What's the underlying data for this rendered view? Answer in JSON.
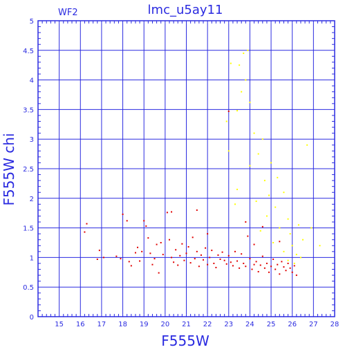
{
  "chart_data": {
    "type": "scatter",
    "title": "lmc_u5ay11",
    "chip_label": "WF2",
    "xlabel": "F555W",
    "ylabel": "F555W chi",
    "xlim": [
      14,
      28
    ],
    "ylim": [
      0,
      5
    ],
    "x_ticks": [
      15,
      16,
      17,
      18,
      19,
      20,
      21,
      22,
      23,
      24,
      25,
      26,
      27,
      28
    ],
    "y_ticks": [
      0,
      0.5,
      1,
      1.5,
      2,
      2.5,
      3,
      3.5,
      4,
      4.5,
      5
    ],
    "x_tick_labels": [
      "15",
      "16",
      "17",
      "18",
      "19",
      "20",
      "21",
      "22",
      "23",
      "24",
      "25",
      "26",
      "27",
      "28"
    ],
    "y_tick_labels": [
      "0",
      "0.5",
      "1",
      "1.5",
      "2",
      "2.5",
      "3",
      "3.5",
      "4",
      "4.5",
      "5"
    ],
    "grid": true,
    "colors": {
      "axis": "#2a2ae0",
      "grid": "#2a2ae0",
      "red": "#e00000",
      "yellow": "#ffff00"
    },
    "series": [
      {
        "color": "#e00000",
        "points": [
          [
            16.3,
            1.57
          ],
          [
            16.2,
            1.43
          ],
          [
            16.9,
            1.12
          ],
          [
            16.8,
            0.97
          ],
          [
            17.1,
            1.0
          ],
          [
            17.7,
            1.02
          ],
          [
            17.9,
            0.98
          ],
          [
            18.2,
            1.62
          ],
          [
            18.0,
            1.73
          ],
          [
            18.3,
            0.93
          ],
          [
            18.4,
            0.86
          ],
          [
            18.6,
            1.08
          ],
          [
            18.7,
            1.17
          ],
          [
            18.8,
            0.94
          ],
          [
            19.0,
            1.62
          ],
          [
            19.1,
            1.53
          ],
          [
            19.2,
            1.33
          ],
          [
            19.3,
            1.07
          ],
          [
            19.4,
            0.88
          ],
          [
            19.5,
            0.98
          ],
          [
            19.6,
            1.22
          ],
          [
            19.7,
            0.74
          ],
          [
            19.9,
            1.05
          ],
          [
            20.1,
            1.76
          ],
          [
            20.2,
            1.3
          ],
          [
            20.3,
            1.0
          ],
          [
            20.4,
            0.92
          ],
          [
            20.5,
            1.13
          ],
          [
            20.6,
            0.87
          ],
          [
            20.7,
            1.03
          ],
          [
            20.8,
            1.23
          ],
          [
            20.9,
            0.95
          ],
          [
            21.0,
            1.07
          ],
          [
            21.1,
            1.18
          ],
          [
            21.2,
            0.91
          ],
          [
            21.3,
            1.34
          ],
          [
            21.4,
            0.98
          ],
          [
            21.5,
            1.1
          ],
          [
            21.6,
            0.85
          ],
          [
            21.7,
            1.04
          ],
          [
            21.8,
            0.96
          ],
          [
            21.9,
            1.16
          ],
          [
            22.0,
            0.88
          ],
          [
            22.1,
            1.0
          ],
          [
            22.2,
            1.12
          ],
          [
            22.3,
            0.9
          ],
          [
            22.4,
            0.83
          ],
          [
            22.5,
            1.04
          ],
          [
            22.6,
            0.97
          ],
          [
            22.7,
            1.09
          ],
          [
            22.8,
            0.95
          ],
          [
            22.9,
            0.89
          ],
          [
            23.0,
            1.03
          ],
          [
            23.1,
            0.92
          ],
          [
            23.2,
            0.86
          ],
          [
            23.3,
            1.1
          ],
          [
            23.4,
            0.94
          ],
          [
            23.5,
            0.82
          ],
          [
            23.6,
            1.06
          ],
          [
            23.7,
            0.9
          ],
          [
            23.8,
            0.85
          ],
          [
            23.9,
            1.36
          ],
          [
            24.0,
            0.98
          ],
          [
            24.1,
            0.8
          ],
          [
            24.2,
            0.88
          ],
          [
            24.3,
            0.93
          ],
          [
            24.4,
            0.76
          ],
          [
            24.5,
            0.87
          ],
          [
            24.6,
            1.02
          ],
          [
            24.7,
            0.82
          ],
          [
            24.8,
            0.9
          ],
          [
            24.9,
            0.75
          ],
          [
            25.0,
            0.85
          ],
          [
            25.1,
            0.97
          ],
          [
            25.2,
            0.8
          ],
          [
            25.3,
            0.88
          ],
          [
            25.4,
            0.72
          ],
          [
            25.5,
            0.93
          ],
          [
            25.6,
            0.84
          ],
          [
            25.7,
            0.78
          ],
          [
            25.8,
            0.9
          ],
          [
            25.9,
            0.82
          ],
          [
            26.0,
            0.75
          ],
          [
            26.1,
            0.86
          ],
          [
            26.2,
            0.7
          ],
          [
            23.0,
            3.47
          ],
          [
            23.8,
            1.6
          ],
          [
            24.6,
            1.52
          ],
          [
            25.4,
            1.27
          ],
          [
            24.2,
            1.22
          ],
          [
            22.0,
            1.4
          ],
          [
            21.5,
            1.8
          ],
          [
            20.3,
            1.77
          ],
          [
            19.8,
            1.25
          ],
          [
            18.9,
            1.1
          ]
        ]
      },
      {
        "color": "#ffff00",
        "points": [
          [
            23.1,
            4.28
          ],
          [
            23.7,
            4.45
          ],
          [
            23.9,
            4.5
          ],
          [
            23.5,
            4.25
          ],
          [
            23.8,
            4.0
          ],
          [
            23.6,
            3.8
          ],
          [
            23.4,
            3.48
          ],
          [
            24.0,
            3.62
          ],
          [
            22.9,
            3.3
          ],
          [
            24.2,
            3.1
          ],
          [
            24.6,
            3.0
          ],
          [
            23.0,
            2.8
          ],
          [
            24.4,
            2.75
          ],
          [
            24.0,
            2.55
          ],
          [
            25.0,
            2.6
          ],
          [
            25.3,
            2.35
          ],
          [
            24.7,
            2.3
          ],
          [
            23.4,
            2.15
          ],
          [
            24.9,
            2.05
          ],
          [
            25.6,
            2.1
          ],
          [
            24.3,
            1.95
          ],
          [
            25.2,
            1.85
          ],
          [
            23.3,
            1.9
          ],
          [
            24.8,
            1.7
          ],
          [
            25.8,
            1.65
          ],
          [
            26.3,
            1.55
          ],
          [
            25.4,
            1.5
          ],
          [
            24.5,
            1.45
          ],
          [
            25.9,
            1.4
          ],
          [
            26.5,
            1.3
          ],
          [
            25.1,
            1.25
          ],
          [
            26.0,
            1.2
          ],
          [
            25.6,
            1.1
          ],
          [
            26.2,
            1.05
          ],
          [
            25.8,
            0.95
          ],
          [
            26.1,
            0.9
          ],
          [
            26.4,
            1.0
          ],
          [
            26.7,
            2.9
          ],
          [
            27.3,
            1.2
          ],
          [
            26.9,
            1.5
          ]
        ]
      }
    ]
  }
}
